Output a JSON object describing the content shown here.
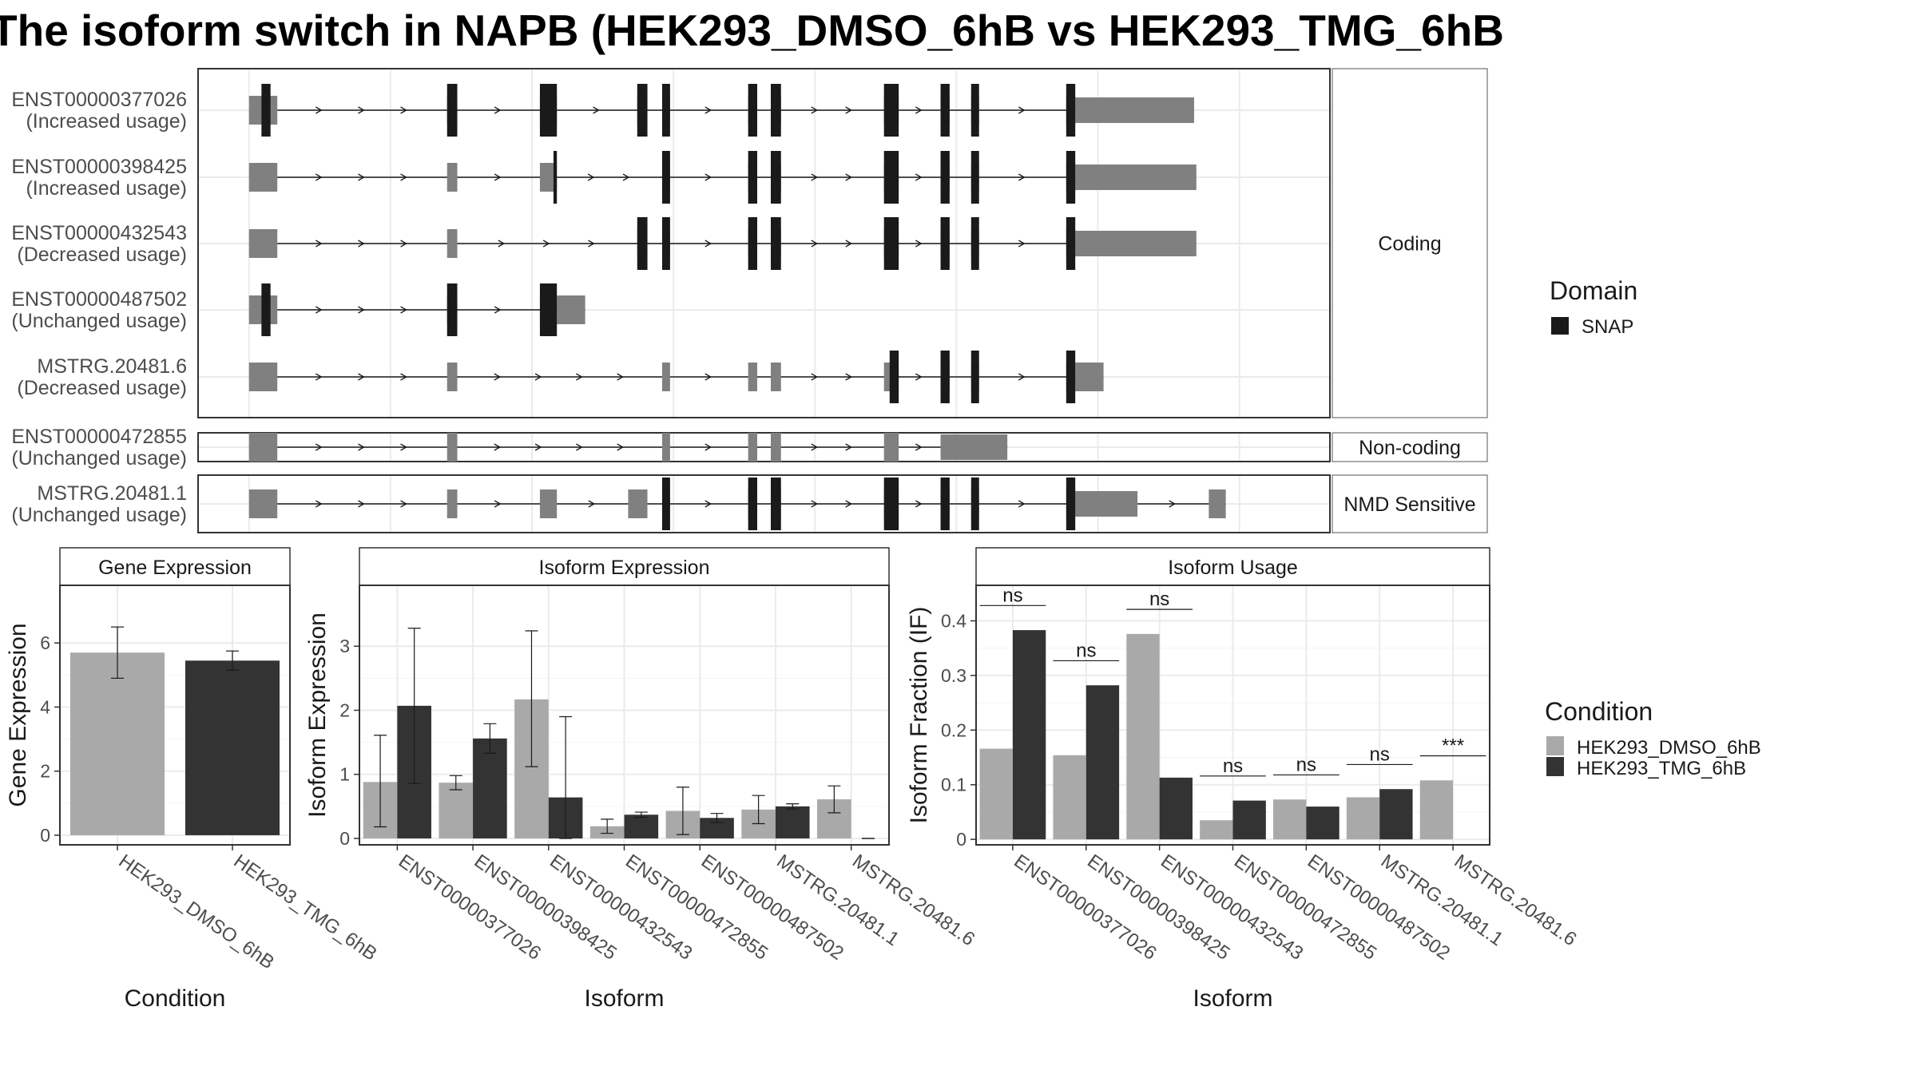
{
  "title": "The isoform switch in NAPB (HEK293_DMSO_6hB vs HEK293_TMG_6hB",
  "colors": {
    "domain": "#1a1a1a",
    "exon": "#808080",
    "dmso": "#a9a9a9",
    "tmg": "#333333",
    "grid": "#ebebeb",
    "strip_bg": "#ffffff",
    "frame": "#333333"
  },
  "chart_data": [
    {
      "type": "gene-structure",
      "title": "",
      "x_range": [
        0,
        1000
      ],
      "legend": {
        "title": "Domain",
        "entries": [
          "SNAP"
        ]
      },
      "groups": [
        {
          "name": "Coding",
          "transcripts": [
            "ENST00000377026",
            "ENST00000398425",
            "ENST00000432543",
            "ENST00000487502",
            "MSTRG.20481.6"
          ]
        },
        {
          "name": "Non-coding",
          "transcripts": [
            "ENST00000472855"
          ]
        },
        {
          "name": "NMD Sensitive",
          "transcripts": [
            "MSTRG.20481.1"
          ]
        }
      ],
      "transcripts": [
        {
          "id": "ENST00000377026",
          "status": "(Increased usage)",
          "exons": [
            [
              45,
              70
            ],
            [
              220,
              229
            ],
            [
              302,
              317
            ],
            [
              388,
              397
            ],
            [
              410,
              417
            ],
            [
              486,
              494
            ],
            [
              506,
              515
            ],
            [
              606,
              619
            ],
            [
              656,
              664
            ],
            [
              683,
              690
            ],
            [
              767,
              775
            ],
            [
              775,
              880
            ]
          ],
          "domains": [
            [
              56,
              64
            ],
            [
              220,
              229
            ],
            [
              302,
              317
            ],
            [
              388,
              397
            ],
            [
              410,
              417
            ],
            [
              486,
              494
            ],
            [
              506,
              515
            ],
            [
              606,
              619
            ],
            [
              656,
              664
            ],
            [
              683,
              690
            ],
            [
              767,
              775
            ]
          ]
        },
        {
          "id": "ENST00000398425",
          "status": "(Increased usage)",
          "exons": [
            [
              45,
              70
            ],
            [
              220,
              229
            ],
            [
              302,
              317
            ],
            [
              410,
              417
            ],
            [
              486,
              494
            ],
            [
              506,
              515
            ],
            [
              606,
              619
            ],
            [
              656,
              664
            ],
            [
              683,
              690
            ],
            [
              767,
              775
            ],
            [
              775,
              882
            ]
          ],
          "domains": [
            [
              314,
              317
            ],
            [
              410,
              417
            ],
            [
              486,
              494
            ],
            [
              506,
              515
            ],
            [
              606,
              619
            ],
            [
              656,
              664
            ],
            [
              683,
              690
            ],
            [
              767,
              775
            ]
          ]
        },
        {
          "id": "ENST00000432543",
          "status": "(Decreased usage)",
          "exons": [
            [
              45,
              70
            ],
            [
              220,
              229
            ],
            [
              388,
              397
            ],
            [
              410,
              417
            ],
            [
              486,
              494
            ],
            [
              506,
              515
            ],
            [
              606,
              619
            ],
            [
              656,
              664
            ],
            [
              683,
              690
            ],
            [
              767,
              775
            ],
            [
              775,
              882
            ]
          ],
          "domains": [
            [
              388,
              397
            ],
            [
              410,
              417
            ],
            [
              486,
              494
            ],
            [
              506,
              515
            ],
            [
              606,
              619
            ],
            [
              656,
              664
            ],
            [
              683,
              690
            ],
            [
              767,
              775
            ]
          ]
        },
        {
          "id": "ENST00000487502",
          "status": "(Unchanged usage)",
          "exons": [
            [
              45,
              70
            ],
            [
              220,
              229
            ],
            [
              302,
              317
            ],
            [
              317,
              342
            ]
          ],
          "domains": [
            [
              56,
              64
            ],
            [
              220,
              229
            ],
            [
              302,
              317
            ]
          ]
        },
        {
          "id": "MSTRG.20481.6",
          "status": "(Decreased usage)",
          "exons": [
            [
              45,
              70
            ],
            [
              220,
              229
            ],
            [
              410,
              417
            ],
            [
              486,
              494
            ],
            [
              506,
              515
            ],
            [
              606,
              619
            ],
            [
              656,
              664
            ],
            [
              683,
              690
            ],
            [
              767,
              775
            ],
            [
              775,
              800
            ]
          ],
          "domains": [
            [
              611,
              619
            ],
            [
              656,
              664
            ],
            [
              683,
              690
            ],
            [
              767,
              775
            ]
          ]
        },
        {
          "id": "ENST00000472855",
          "status": "(Unchanged usage)",
          "exons": [
            [
              45,
              70
            ],
            [
              220,
              229
            ],
            [
              410,
              417
            ],
            [
              486,
              494
            ],
            [
              506,
              515
            ],
            [
              606,
              619
            ],
            [
              656,
              715
            ]
          ],
          "domains": []
        },
        {
          "id": "MSTRG.20481.1",
          "status": "(Unchanged usage)",
          "exons": [
            [
              45,
              70
            ],
            [
              220,
              229
            ],
            [
              302,
              317
            ],
            [
              380,
              397
            ],
            [
              410,
              417
            ],
            [
              486,
              494
            ],
            [
              506,
              515
            ],
            [
              606,
              619
            ],
            [
              656,
              664
            ],
            [
              683,
              690
            ],
            [
              767,
              775
            ],
            [
              775,
              830
            ],
            [
              893,
              908
            ]
          ],
          "domains": [
            [
              410,
              417
            ],
            [
              486,
              494
            ],
            [
              506,
              515
            ],
            [
              606,
              619
            ],
            [
              656,
              664
            ],
            [
              683,
              690
            ],
            [
              767,
              775
            ]
          ]
        }
      ]
    },
    {
      "type": "bar",
      "title": "Gene Expression",
      "xlabel": "Condition",
      "ylabel": "Gene Expression",
      "ylim": [
        -0.3,
        7.8
      ],
      "yticks": [
        0,
        2,
        4,
        6
      ],
      "categories": [
        "HEK293_DMSO_6hB",
        "HEK293_TMG_6hB"
      ],
      "series": [
        {
          "name": "HEK293_DMSO_6hB",
          "values": [
            5.7,
            null
          ],
          "error": [
            [
              4.9,
              6.5
            ],
            null
          ]
        },
        {
          "name": "HEK293_TMG_6hB",
          "values": [
            null,
            5.45
          ],
          "error": [
            null,
            [
              5.15,
              5.75
            ]
          ]
        }
      ]
    },
    {
      "type": "bar",
      "title": "Isoform Expression",
      "xlabel": "Isoform",
      "ylabel": "Isoform Expression",
      "ylim": [
        -0.1,
        3.95
      ],
      "yticks": [
        0,
        1,
        2,
        3
      ],
      "categories": [
        "ENST00000377026",
        "ENST00000398425",
        "ENST00000432543",
        "ENST00000472855",
        "ENST00000487502",
        "MSTRG.20481.1",
        "MSTRG.20481.6"
      ],
      "series": [
        {
          "name": "HEK293_DMSO_6hB",
          "values": [
            0.88,
            0.87,
            2.17,
            0.19,
            0.43,
            0.45,
            0.61
          ],
          "error": [
            [
              0.18,
              1.61
            ],
            [
              0.76,
              0.98
            ],
            [
              1.12,
              3.24
            ],
            [
              0.08,
              0.3
            ],
            [
              0.06,
              0.8
            ],
            [
              0.23,
              0.67
            ],
            [
              0.4,
              0.82
            ]
          ]
        },
        {
          "name": "HEK293_TMG_6hB",
          "values": [
            2.07,
            1.56,
            0.64,
            0.37,
            0.32,
            0.5,
            0.0
          ],
          "error": [
            [
              0.86,
              3.28
            ],
            [
              1.33,
              1.79
            ],
            [
              0.0,
              1.9
            ],
            [
              0.33,
              0.41
            ],
            [
              0.25,
              0.39
            ],
            [
              0.46,
              0.54
            ],
            [
              0.0,
              0.0
            ]
          ]
        }
      ]
    },
    {
      "type": "bar",
      "title": "Isoform Usage",
      "xlabel": "Isoform",
      "ylabel": "Isoform Fraction (IF)",
      "ylim": [
        -0.01,
        0.465
      ],
      "yticks": [
        0.0,
        0.1,
        0.2,
        0.3,
        0.4
      ],
      "categories": [
        "ENST00000377026",
        "ENST00000398425",
        "ENST00000432543",
        "ENST00000472855",
        "ENST00000487502",
        "MSTRG.20481.1",
        "MSTRG.20481.6"
      ],
      "series": [
        {
          "name": "HEK293_DMSO_6hB",
          "values": [
            0.166,
            0.154,
            0.376,
            0.035,
            0.073,
            0.077,
            0.108
          ]
        },
        {
          "name": "HEK293_TMG_6hB",
          "values": [
            0.383,
            0.282,
            0.113,
            0.071,
            0.06,
            0.092,
            0.0
          ]
        }
      ],
      "significance": [
        "ns",
        "ns",
        "ns",
        "ns",
        "ns",
        "ns",
        "***"
      ]
    }
  ],
  "condition_legend": {
    "title": "Condition",
    "entries": [
      "HEK293_DMSO_6hB",
      "HEK293_TMG_6hB"
    ]
  }
}
